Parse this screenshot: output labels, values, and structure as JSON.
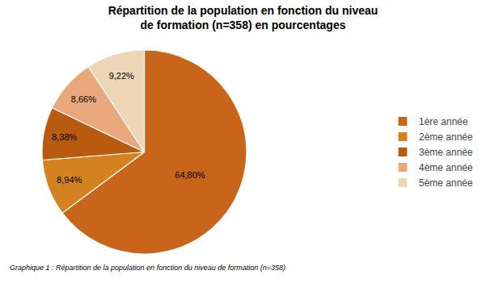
{
  "chart_data": {
    "type": "pie",
    "title": "Répartition de la population en fonction du niveau\nde formation (n=358) en pourcentages",
    "subtitle": "Graphique 1 : Répartition de la population en fonction du niveau de formation (n=358)",
    "categories": [
      "1ère année",
      "2ème année",
      "3ème année",
      "4ème année",
      "5ème année"
    ],
    "values": [
      64.8,
      8.94,
      8.38,
      8.66,
      9.22
    ],
    "value_labels": [
      "64,80%",
      "8,94%",
      "8,38%",
      "8,66%",
      "9,22%"
    ],
    "colors": [
      "#C8651B",
      "#D4821F",
      "#B85A10",
      "#E8A87C",
      "#EDD5B8"
    ],
    "data_labels": true,
    "legend": "right"
  }
}
